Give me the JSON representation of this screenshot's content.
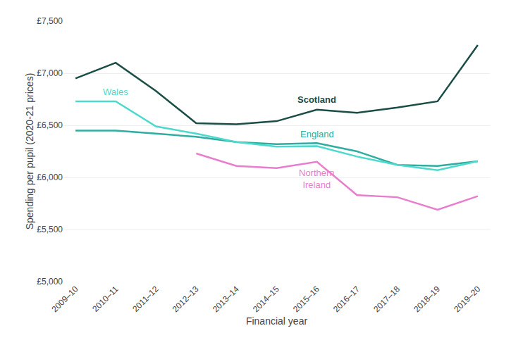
{
  "chart_data": {
    "type": "line",
    "categories": [
      "2009–10",
      "2010–11",
      "2011–12",
      "2012–13",
      "2013–14",
      "2014–15",
      "2015–16",
      "2016–17",
      "2017–18",
      "2018–19",
      "2019–20"
    ],
    "series": [
      {
        "name": "Scotland",
        "color": "#1a4d45",
        "values": [
          6950,
          7100,
          6830,
          6520,
          6510,
          6540,
          6650,
          6620,
          6670,
          6730,
          7270
        ]
      },
      {
        "name": "England",
        "color": "#2eada0",
        "values": [
          6450,
          6450,
          6420,
          6390,
          6340,
          6320,
          6330,
          6250,
          6120,
          6110,
          6155
        ]
      },
      {
        "name": "Wales",
        "color": "#4dd9cc",
        "values": [
          6730,
          6730,
          6490,
          6420,
          6340,
          6295,
          6300,
          6200,
          6120,
          6070,
          6155
        ]
      },
      {
        "name": "Northern\nIreland",
        "color": "#e87dce",
        "values": [
          null,
          null,
          null,
          6230,
          6110,
          6090,
          6150,
          5830,
          5810,
          5690,
          5820
        ]
      }
    ],
    "xlabel": "Financial year",
    "ylabel": "Spending per pupil (2020-21 prices)",
    "ylim": [
      5000,
      7500
    ],
    "yticks": [
      {
        "value": 5000,
        "label": "£5,000"
      },
      {
        "value": 5500,
        "label": "£5,500"
      },
      {
        "value": 6000,
        "label": "£6,000"
      },
      {
        "value": 6500,
        "label": "£6,500"
      },
      {
        "value": 7000,
        "label": "£7,000"
      },
      {
        "value": 7500,
        "label": "£7,500"
      }
    ],
    "grid": true,
    "legend": false
  }
}
